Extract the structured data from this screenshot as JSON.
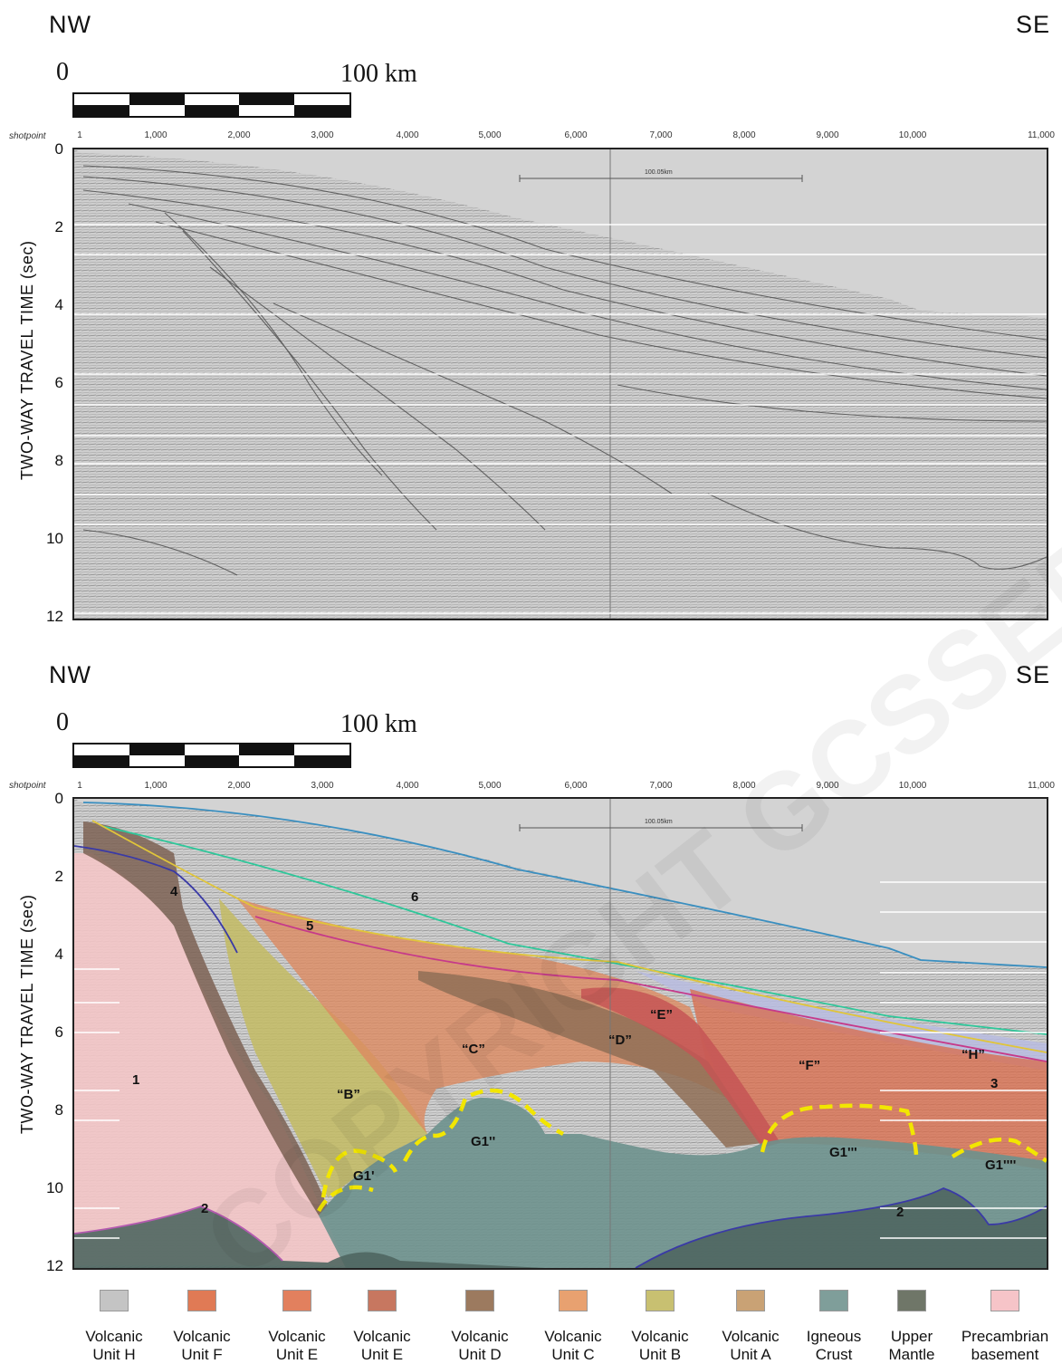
{
  "top": {
    "nw": "NW",
    "se": "SE",
    "scale_zero": "0",
    "scale_end": "100 km",
    "shotpoint_title": "shotpoint",
    "shotpoints": [
      "1",
      "1,000",
      "2,000",
      "3,000",
      "4,000",
      "5,000",
      "6,000",
      "7,000",
      "8,000",
      "9,000",
      "10,000",
      "11,000"
    ],
    "y_label": "TWO-WAY TRAVEL TIME (sec)",
    "y_ticks": [
      "0",
      "2",
      "4",
      "6",
      "8",
      "10",
      "12"
    ],
    "inset_scale": "100.05km"
  },
  "bottom": {
    "nw": "NW",
    "se": "SE",
    "scale_zero": "0",
    "scale_end": "100 km",
    "shotpoint_title": "shotpoint",
    "shotpoints": [
      "1",
      "1,000",
      "2,000",
      "3,000",
      "4,000",
      "5,000",
      "6,000",
      "7,000",
      "8,000",
      "9,000",
      "10,000",
      "11,000"
    ],
    "y_label": "TWO-WAY TRAVEL TIME (sec)",
    "y_ticks": [
      "0",
      "2",
      "4",
      "6",
      "8",
      "10",
      "12"
    ],
    "inset_scale": "100.05km",
    "labels": {
      "n1": "1",
      "n2a": "2",
      "n2b": "2",
      "n3": "3",
      "n4": "4",
      "n5": "5",
      "n6": "6",
      "B": "“B”",
      "C": "“C”",
      "D": "“D”",
      "E": "“E”",
      "F": "“F”",
      "H": "“H”",
      "G1a": "G1'",
      "G1b": "G1''",
      "G1c": "G1'''",
      "G1d": "G1''''"
    }
  },
  "legend": [
    {
      "l1": "Volcanic",
      "l2": "Unit H",
      "color": "#c4c4c4"
    },
    {
      "l1": "Volcanic",
      "l2": "Unit F",
      "color": "#e07a55"
    },
    {
      "l1": "Volcanic",
      "l2": "Unit E",
      "color": "#e2805e"
    },
    {
      "l1": "Volcanic",
      "l2": "Unit E",
      "color": "#c77760"
    },
    {
      "l1": "Volcanic",
      "l2": "Unit D",
      "color": "#9c7a5f"
    },
    {
      "l1": "Volcanic",
      "l2": "Unit C",
      "color": "#e8a170"
    },
    {
      "l1": "Volcanic",
      "l2": "Unit B",
      "color": "#c8c071"
    },
    {
      "l1": "Volcanic",
      "l2": "Unit A",
      "color": "#c9a275"
    },
    {
      "l1": "Igneous",
      "l2": "Crust",
      "color": "#7f9e9a"
    },
    {
      "l1": "Upper",
      "l2": "Mantle",
      "color": "#6f7668"
    },
    {
      "l1": "Precambrian",
      "l2": "basement",
      "color": "#f6c4c8"
    }
  ],
  "watermark": "COPYRIGHT GCSSEPM"
}
